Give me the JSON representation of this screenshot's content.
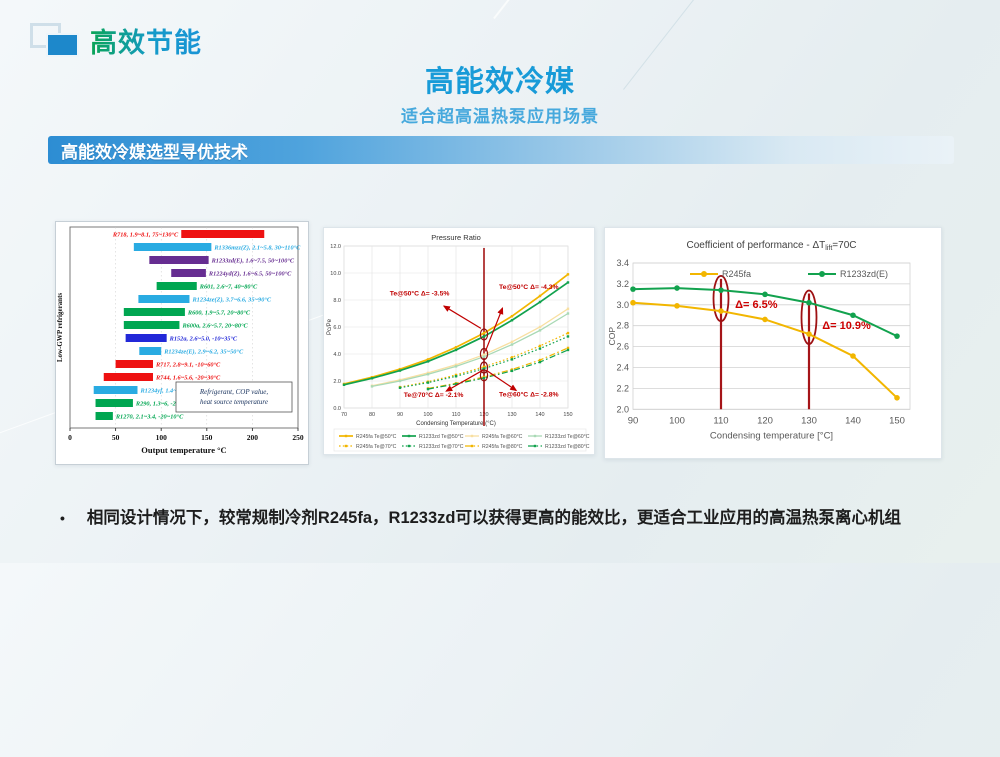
{
  "header": {
    "badge": "高效节能"
  },
  "title": "高能效冷媒",
  "subtitle": "适合超高温热泵应用场景",
  "section_bar": {
    "label": "高能效冷媒选型寻优技术"
  },
  "footer": {
    "bullet_marker": "•",
    "text": "相同设计情况下，较常规制冷剂R245fa，R1233zd可以获得更高的能效比，更适合工业应用的高温热泵离心机组"
  },
  "chart_data": [
    {
      "id": "refrigerant-ranges",
      "type": "bar",
      "orientation": "horizontal",
      "xlabel": "Output temperature  °C",
      "ylabel": "Low-GWP refrigerants",
      "xlim": [
        0,
        250
      ],
      "xticks": [
        0,
        50,
        100,
        150,
        200,
        250
      ],
      "note_lines": [
        "Refrigerant, COP value,",
        "heat source temperature"
      ],
      "bars": [
        {
          "label": "R718, 1.9~8.1, 75~130°C",
          "range": [
            122,
            213
          ],
          "color": "#ee1111",
          "label_side": "left"
        },
        {
          "label": "R1336mzz(Z), 2.1~5.8, 30~110°C",
          "range": [
            70,
            155
          ],
          "color": "#29abe2",
          "label_side": "right"
        },
        {
          "label": "R1233zd(E), 1.6~7.5, 50~100°C",
          "range": [
            87,
            152
          ],
          "color": "#662d91",
          "label_side": "right"
        },
        {
          "label": "R1224yd(Z), 1.6~6.5, 50~100°C",
          "range": [
            111,
            149
          ],
          "color": "#662d91",
          "label_side": "right"
        },
        {
          "label": "R601, 2.6~7, 40~80°C",
          "range": [
            95,
            139
          ],
          "color": "#00a651",
          "label_side": "right"
        },
        {
          "label": "R1234ze(Z), 3.7~6.6, 35~90°C",
          "range": [
            75,
            131
          ],
          "color": "#29abe2",
          "label_side": "right"
        },
        {
          "label": "R600, 1.9~5.7, 20~80°C",
          "range": [
            59,
            126
          ],
          "color": "#00a651",
          "label_side": "right"
        },
        {
          "label": "R600a, 2.6~5.7, 20~80°C",
          "range": [
            59,
            120
          ],
          "color": "#00a651",
          "label_side": "right"
        },
        {
          "label": "R152a, 2.6~5.0, -10~35°C",
          "range": [
            61,
            106
          ],
          "color": "#2228d8",
          "label_side": "right"
        },
        {
          "label": "R1234ze(E), 2.9~6.2, 35~50°C",
          "range": [
            76,
            100
          ],
          "color": "#29abe2",
          "label_side": "right"
        },
        {
          "label": "R717, 2.8~9.1, -10~60°C",
          "range": [
            50,
            91
          ],
          "color": "#ee1111",
          "label_side": "right"
        },
        {
          "label": "R744, 1.6~5.6, -20~30°C",
          "range": [
            37,
            91
          ],
          "color": "#ee1111",
          "label_side": "right"
        },
        {
          "label": "R1234yf, 1.4~7.5, -20~20°C",
          "range": [
            26,
            74
          ],
          "color": "#29abe2",
          "label_side": "right"
        },
        {
          "label": "R290, 1.3~6, -20~35°C",
          "range": [
            28,
            69
          ],
          "color": "#00a651",
          "label_side": "right"
        },
        {
          "label": "R1270, 2.1~3.4, -20~10°C",
          "range": [
            28,
            47
          ],
          "color": "#00a651",
          "label_side": "right"
        }
      ]
    },
    {
      "id": "pressure-ratio",
      "type": "line",
      "title": "Pressure Ratio",
      "xlabel": "Condensing Temperature (°C)",
      "ylabel": "Pc/Pe",
      "xlim": [
        70,
        150
      ],
      "xticks": [
        70,
        80,
        90,
        100,
        110,
        120,
        130,
        140,
        150
      ],
      "ylim": [
        0,
        12
      ],
      "yticks": [
        0,
        2,
        4,
        6,
        8,
        10,
        12
      ],
      "ytick_labels": [
        "0.0",
        "2.0",
        "4.0",
        "6.0",
        "8.0",
        "10.0",
        "12.0"
      ],
      "series": [
        {
          "name": "R245fa Te@50°C",
          "color": "#f2b600",
          "style": "solid",
          "width": 1.7,
          "x": [
            70,
            80,
            90,
            100,
            110,
            120,
            130,
            140,
            150
          ],
          "y": [
            1.78,
            2.28,
            2.88,
            3.6,
            4.5,
            5.55,
            6.8,
            8.3,
            9.9
          ]
        },
        {
          "name": "R1233zd Te@50°C",
          "color": "#12a24e",
          "style": "solid",
          "width": 1.7,
          "x": [
            70,
            80,
            90,
            100,
            110,
            120,
            130,
            140,
            150
          ],
          "y": [
            1.72,
            2.2,
            2.77,
            3.45,
            4.3,
            5.3,
            6.5,
            7.85,
            9.3
          ]
        },
        {
          "name": "R245fa Te@60°C",
          "color": "#f8dfa0",
          "style": "solid",
          "width": 1.3,
          "x": [
            80,
            90,
            100,
            110,
            120,
            130,
            140,
            150
          ],
          "y": [
            1.65,
            2.08,
            2.6,
            3.2,
            3.95,
            4.9,
            6.0,
            7.35
          ]
        },
        {
          "name": "R1233zd Te@60°C",
          "color": "#a9d9b5",
          "style": "solid",
          "width": 1.3,
          "x": [
            80,
            90,
            100,
            110,
            120,
            130,
            140,
            150
          ],
          "y": [
            1.6,
            2.0,
            2.5,
            3.08,
            3.8,
            4.7,
            5.75,
            7.0
          ]
        },
        {
          "name": "R245fa Te@70°C",
          "color": "#f2b600",
          "style": "dotted",
          "width": 1.2,
          "x": [
            90,
            100,
            110,
            120,
            130,
            140,
            150
          ],
          "y": [
            1.55,
            1.95,
            2.45,
            3.05,
            3.75,
            4.6,
            5.55
          ]
        },
        {
          "name": "R1233zd Te@70°C",
          "color": "#12a24e",
          "style": "dotted",
          "width": 1.2,
          "x": [
            90,
            100,
            110,
            120,
            130,
            140,
            150
          ],
          "y": [
            1.5,
            1.88,
            2.35,
            2.92,
            3.6,
            4.4,
            5.3
          ]
        },
        {
          "name": "R245fa Te@80°C",
          "color": "#f2b600",
          "style": "dashdot",
          "width": 1.2,
          "x": [
            100,
            110,
            120,
            130,
            140,
            150
          ],
          "y": [
            1.45,
            1.83,
            2.3,
            2.85,
            3.55,
            4.45
          ]
        },
        {
          "name": "R1233zd Te@80°C",
          "color": "#12a24e",
          "style": "dashdot",
          "width": 1.2,
          "x": [
            100,
            110,
            120,
            130,
            140,
            150
          ],
          "y": [
            1.4,
            1.78,
            2.22,
            2.75,
            3.4,
            4.3
          ]
        }
      ],
      "vline": {
        "x": 120,
        "color": "#a31515"
      },
      "highlight_circles": [
        {
          "x": 120,
          "y": 5.45
        },
        {
          "x": 120,
          "y": 4.0
        },
        {
          "x": 120,
          "y": 3.0
        },
        {
          "x": 120,
          "y": 2.42
        }
      ],
      "annotations": [
        {
          "text": "Te@50°C  Δ=  -3.5%",
          "x": 97,
          "y": 8.35
        },
        {
          "text": "Te@50°C  Δ=  -4.3%",
          "x": 136,
          "y": 8.8
        },
        {
          "text": "Te@70°C  Δ= -2.1%",
          "x": 102,
          "y": 0.8
        },
        {
          "text": "Te@60°C  Δ=  -2.8%",
          "x": 136,
          "y": 0.85
        }
      ],
      "arrows": [
        {
          "x1": 118.9,
          "y1": 5.9,
          "x2": 105.7,
          "y2": 7.55
        },
        {
          "x1": 120.5,
          "y1": 4.2,
          "x2": 126.6,
          "y2": 7.4
        },
        {
          "x1": 119.6,
          "y1": 2.8,
          "x2": 106.5,
          "y2": 1.25
        },
        {
          "x1": 120.8,
          "y1": 2.8,
          "x2": 131.5,
          "y2": 1.3
        }
      ],
      "annotation_color": "#c00000"
    },
    {
      "id": "cop-comparison",
      "type": "line",
      "title_pre": "Coefficient of performance - ΔT",
      "title_sub": "lift",
      "title_post": "=70C",
      "xlabel": "Condensing temperature [°C]",
      "ylabel": "COP",
      "xlim": [
        90,
        150
      ],
      "xticks": [
        90,
        100,
        110,
        120,
        130,
        140,
        150
      ],
      "ylim": [
        2.0,
        3.4
      ],
      "ytick_labels": [
        "2.0",
        "2.2",
        "2.4",
        "2.6",
        "2.8",
        "3.0",
        "3.2",
        "3.4"
      ],
      "series": [
        {
          "name": "R245fa",
          "color": "#f2b600",
          "x": [
            90,
            100,
            110,
            120,
            130,
            140,
            150
          ],
          "y": [
            3.02,
            2.99,
            2.94,
            2.86,
            2.72,
            2.51,
            2.11
          ]
        },
        {
          "name": "R1233zd(E)",
          "color": "#12a24e",
          "x": [
            90,
            100,
            110,
            120,
            130,
            140,
            150
          ],
          "y": [
            3.15,
            3.16,
            3.14,
            3.1,
            3.02,
            2.9,
            2.7
          ]
        }
      ],
      "highlights": [
        {
          "x": 110,
          "ellipse_y": [
            2.92,
            3.2
          ],
          "label": "Δ=  6.5%",
          "label_pos": [
            113.2,
            2.97
          ]
        },
        {
          "x": 130,
          "ellipse_y": [
            2.7,
            3.06
          ],
          "label": "Δ=  10.9%",
          "label_pos": [
            133.0,
            2.77
          ]
        }
      ],
      "line_color": "#a51418",
      "annotation_color": "#cc0000"
    }
  ]
}
